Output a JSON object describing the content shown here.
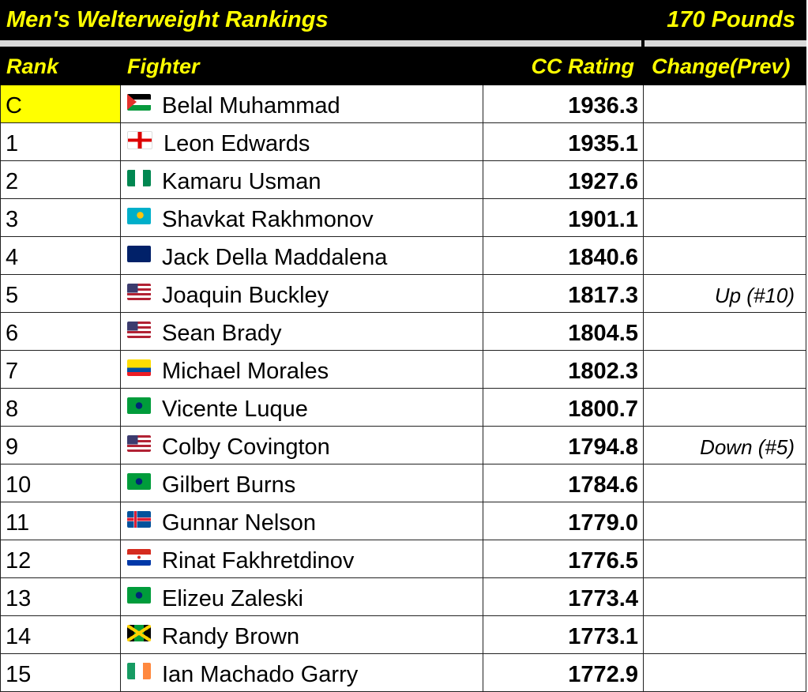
{
  "title": "Men's Welterweight Rankings",
  "weight": "170 Pounds",
  "headers": {
    "rank": "Rank",
    "fighter": "Fighter",
    "rating": "CC Rating",
    "change": "Change(Prev)"
  },
  "colors": {
    "header_bg": "#000000",
    "header_text": "#ffff00",
    "champion_highlight": "#ffff00"
  },
  "rows": [
    {
      "rank": "C",
      "flag": "palestine",
      "fighter": "Belal Muhammad",
      "rating": "1936.3",
      "change": ""
    },
    {
      "rank": "1",
      "flag": "england",
      "fighter": "Leon Edwards",
      "rating": "1935.1",
      "change": ""
    },
    {
      "rank": "2",
      "flag": "nigeria",
      "fighter": "Kamaru Usman",
      "rating": "1927.6",
      "change": ""
    },
    {
      "rank": "3",
      "flag": "kazakhstan",
      "fighter": "Shavkat Rakhmonov",
      "rating": "1901.1",
      "change": ""
    },
    {
      "rank": "4",
      "flag": "australia",
      "fighter": "Jack Della Maddalena",
      "rating": "1840.6",
      "change": ""
    },
    {
      "rank": "5",
      "flag": "usa",
      "fighter": "Joaquin Buckley",
      "rating": "1817.3",
      "change": "Up (#10)"
    },
    {
      "rank": "6",
      "flag": "usa",
      "fighter": "Sean Brady",
      "rating": "1804.5",
      "change": ""
    },
    {
      "rank": "7",
      "flag": "ecuador",
      "fighter": "Michael Morales",
      "rating": "1802.3",
      "change": ""
    },
    {
      "rank": "8",
      "flag": "brazil",
      "fighter": "Vicente Luque",
      "rating": "1800.7",
      "change": ""
    },
    {
      "rank": "9",
      "flag": "usa",
      "fighter": "Colby Covington",
      "rating": "1794.8",
      "change": "Down (#5)"
    },
    {
      "rank": "10",
      "flag": "brazil",
      "fighter": "Gilbert Burns",
      "rating": "1784.6",
      "change": ""
    },
    {
      "rank": "11",
      "flag": "iceland",
      "fighter": "Gunnar Nelson",
      "rating": "1779.0",
      "change": ""
    },
    {
      "rank": "12",
      "flag": "paraguay",
      "fighter": "Rinat Fakhretdinov",
      "rating": "1776.5",
      "change": ""
    },
    {
      "rank": "13",
      "flag": "brazil",
      "fighter": "Elizeu Zaleski",
      "rating": "1773.4",
      "change": ""
    },
    {
      "rank": "14",
      "flag": "jamaica",
      "fighter": "Randy Brown",
      "rating": "1773.1",
      "change": ""
    },
    {
      "rank": "15",
      "flag": "ireland",
      "fighter": "Ian Machado Garry",
      "rating": "1772.9",
      "change": ""
    }
  ]
}
